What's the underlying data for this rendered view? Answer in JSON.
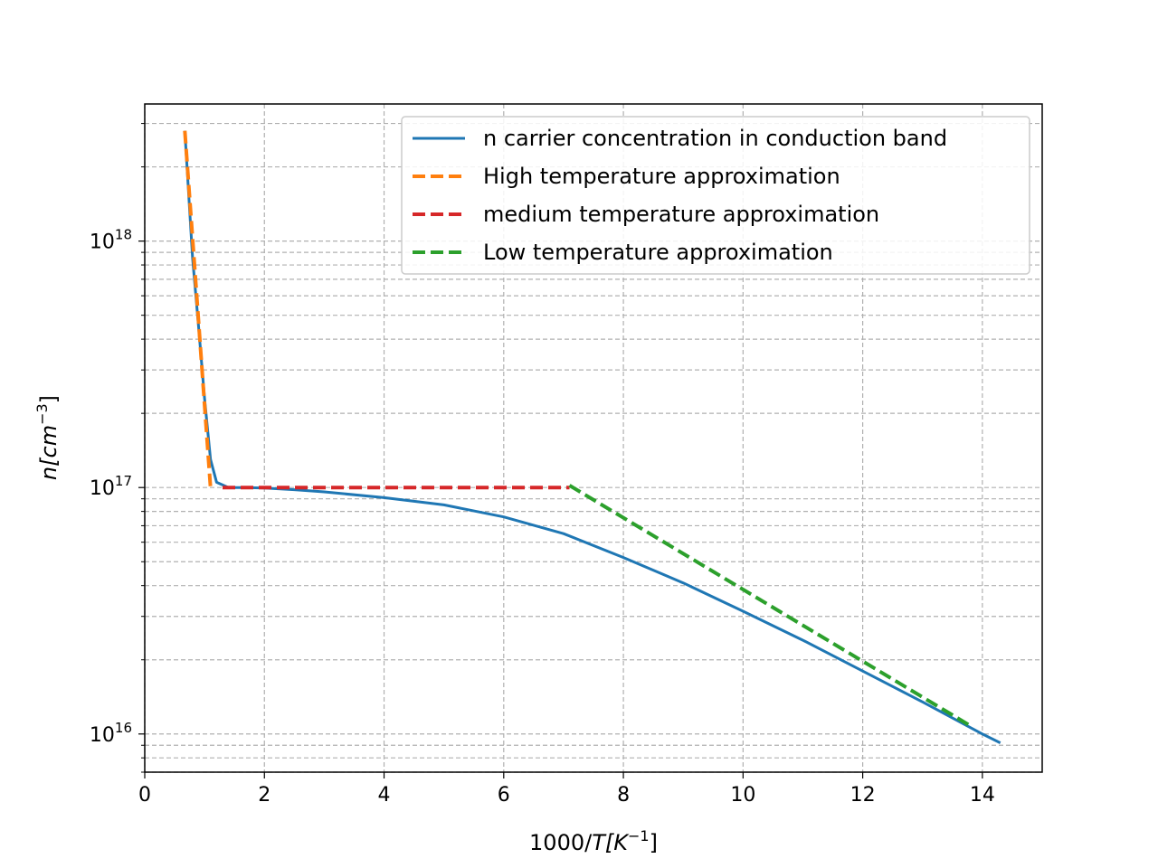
{
  "chart_data": {
    "type": "line",
    "title": "",
    "xlabel": {
      "prefix": "1000/",
      "var": "T",
      "unit_open": "[K",
      "unit_sup": "−1",
      "unit_close": "]"
    },
    "ylabel": {
      "var": "n",
      "unit_open": "[cm",
      "unit_sup": "−3",
      "unit_close": "]"
    },
    "xlim": [
      0,
      15
    ],
    "ylim": [
      7000000000000000.0,
      3.6e+18
    ],
    "yscale": "log",
    "grid": true,
    "legend_position": "top-right",
    "x_ticks": [
      "0",
      "2",
      "4",
      "6",
      "8",
      "10",
      "12",
      "14"
    ],
    "y_ticks": [
      {
        "base": "10",
        "exp": "16",
        "value": 1e+16
      },
      {
        "base": "10",
        "exp": "17",
        "value": 1e+17
      },
      {
        "base": "10",
        "exp": "18",
        "value": 1e+18
      }
    ],
    "series": [
      {
        "name": "n carrier concentration in conduction band",
        "color": "#1f77b4",
        "style": "solid",
        "x": [
          0.67,
          0.8,
          0.9,
          1.0,
          1.1,
          1.2,
          1.4,
          1.7,
          2.0,
          2.5,
          3.0,
          4.0,
          5.0,
          6.0,
          7.0,
          8.0,
          9.0,
          10.0,
          11.0,
          12.0,
          13.0,
          14.0,
          14.3
        ],
        "y": [
          2.8e+18,
          8.5e+17,
          4.5e+17,
          2.3e+17,
          1.3e+17,
          1.05e+17,
          1e+17,
          1e+17,
          9.95e+16,
          9.8e+16,
          9.6e+16,
          9.1e+16,
          8.5e+16,
          7.6e+16,
          6.5e+16,
          5.2e+16,
          4.1e+16,
          3.15e+16,
          2.4e+16,
          1.8e+16,
          1.35e+16,
          1e+16,
          9200000000000000.0
        ]
      },
      {
        "name": "High temperature approximation",
        "color": "#ff7f0e",
        "style": "dashed",
        "x": [
          0.67,
          1.1
        ],
        "y": [
          2.8e+18,
          1e+17
        ]
      },
      {
        "name": "medium temperature approximation",
        "color": "#d62728",
        "style": "dashed",
        "x": [
          1.3,
          7.1
        ],
        "y": [
          1e+17,
          1e+17
        ]
      },
      {
        "name": "Low temperature approximation",
        "color": "#2ca02c",
        "style": "dashed",
        "x": [
          7.1,
          13.8
        ],
        "y": [
          1.02e+17,
          1.08e+16
        ]
      }
    ]
  }
}
